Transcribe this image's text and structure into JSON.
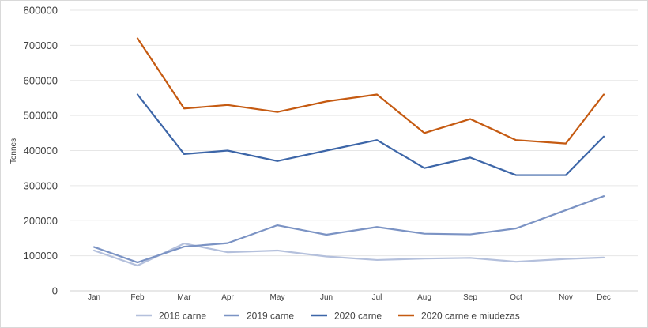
{
  "chart_data": {
    "type": "line",
    "title": "",
    "xlabel": "",
    "ylabel": "Tonnes",
    "categories": [
      "Jan",
      "Feb",
      "Mar",
      "Apr",
      "May",
      "Jun",
      "Jul",
      "Aug",
      "Sep",
      "Oct",
      "Nov",
      "Dec"
    ],
    "ylim": [
      0,
      800000
    ],
    "yticks": [
      "0",
      "100000",
      "200000",
      "300000",
      "400000",
      "500000",
      "600000",
      "700000",
      "800000"
    ],
    "grid": true,
    "legend_position": "bottom",
    "series": [
      {
        "name": "2018 carne",
        "color": "#b4c0dc",
        "values": [
          115000,
          72000,
          135000,
          110000,
          115000,
          98000,
          88000,
          92000,
          94000,
          83000,
          91000,
          95000
        ]
      },
      {
        "name": "2019 carne",
        "color": "#7b93c4",
        "values": [
          125000,
          81000,
          126000,
          136000,
          187000,
          160000,
          182000,
          163000,
          161000,
          178000,
          230000,
          270000
        ]
      },
      {
        "name": "2020 carne",
        "color": "#3d66a8",
        "values": [
          null,
          560000,
          390000,
          400000,
          370000,
          400000,
          430000,
          350000,
          380000,
          330000,
          330000,
          440000
        ]
      },
      {
        "name": "2020 carne e miudezas",
        "color": "#c55a11",
        "values": [
          null,
          720000,
          520000,
          530000,
          510000,
          540000,
          560000,
          450000,
          490000,
          430000,
          420000,
          560000
        ]
      }
    ]
  }
}
